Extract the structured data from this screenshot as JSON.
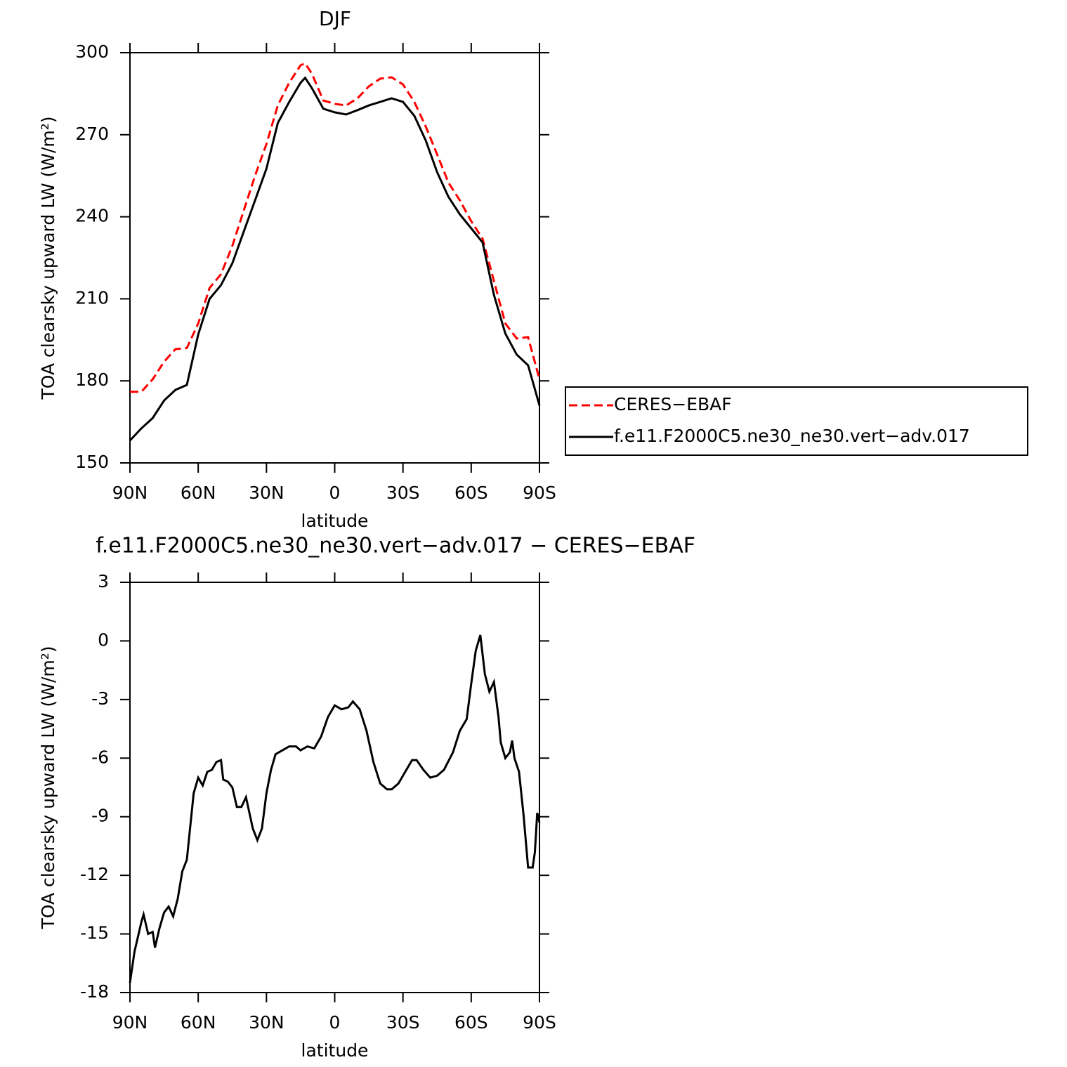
{
  "chart_data": [
    {
      "type": "line",
      "title": "DJF",
      "xlabel": "latitude",
      "ylabel": "TOA clearsky upward LW (W/m²)",
      "x": [
        90,
        85,
        80,
        75,
        70,
        65,
        60,
        55,
        50,
        45,
        40,
        35,
        30,
        25,
        20,
        15,
        13,
        10,
        5,
        0,
        -5,
        -10,
        -15,
        -20,
        -25,
        -30,
        -35,
        -40,
        -45,
        -50,
        -55,
        -60,
        -65,
        -70,
        -75,
        -80,
        -85,
        -90
      ],
      "series": [
        {
          "name": "CERES−EBAF",
          "color": "#ff0000",
          "dash": true,
          "values": [
            176,
            176,
            180.6,
            187,
            191.6,
            192,
            201,
            214,
            219,
            229.4,
            242.2,
            255,
            266.6,
            280.7,
            289,
            295.4,
            296.1,
            292.3,
            282.5,
            281.3,
            280.7,
            283.3,
            287.7,
            290.5,
            291,
            288.4,
            282,
            273,
            262.8,
            252.5,
            246,
            238.4,
            232,
            216.5,
            201,
            195.5,
            196,
            180.6
          ]
        },
        {
          "name": "f.e11.F2000C5.ne30_ne30.vert−adv.017",
          "color": "#000000",
          "dash": false,
          "values": [
            158.2,
            162.6,
            166.4,
            172.8,
            176.7,
            178.5,
            197,
            210,
            215,
            223,
            234.5,
            246,
            257.6,
            274.3,
            282,
            289,
            290.8,
            287,
            279.5,
            278.2,
            277.4,
            279,
            280.7,
            282,
            283.3,
            282,
            276.9,
            267.9,
            256.3,
            247.3,
            240.9,
            235.8,
            230.6,
            211.4,
            197.3,
            189.6,
            185.7,
            171
          ]
        }
      ],
      "xlim": [
        90,
        -90
      ],
      "xticks": [
        {
          "value": 90,
          "label": "90N"
        },
        {
          "value": 60,
          "label": "60N"
        },
        {
          "value": 30,
          "label": "30N"
        },
        0,
        {
          "value": -30,
          "label": "30S"
        },
        {
          "value": -60,
          "label": "60S"
        },
        {
          "value": -90,
          "label": "90S"
        }
      ],
      "ylim": [
        150,
        300
      ],
      "yticks": [
        150,
        180,
        210,
        240,
        270,
        300
      ],
      "legend": "right"
    },
    {
      "type": "line",
      "title": "f.e11.F2000C5.ne30_ne30.vert−adv.017 − CERES−EBAF",
      "xlabel": "latitude",
      "ylabel": "TOA clearsky upward LW (W/m²)",
      "x": [
        90,
        88,
        85,
        84,
        82,
        80,
        79,
        77,
        75,
        73,
        71,
        69,
        67,
        65,
        62,
        60,
        58,
        56,
        54,
        52,
        50,
        49,
        47,
        45,
        43,
        41,
        39,
        36,
        34,
        32,
        30,
        28,
        26,
        23,
        20,
        17,
        15,
        12,
        9,
        6,
        3,
        0,
        -3,
        -6,
        -8,
        -11,
        -14,
        -17,
        -20,
        -23,
        -25,
        -28,
        -31,
        -34,
        -36,
        -39,
        -42,
        -45,
        -48,
        -52,
        -55,
        -58,
        -60,
        -62,
        -64,
        -66,
        -68,
        -70,
        -72,
        -73,
        -75,
        -77,
        -78,
        -79,
        -81,
        -83,
        -85,
        -87,
        -88,
        -89,
        -90
      ],
      "color": "#000000",
      "values": [
        -17.5,
        -15.9,
        -14.4,
        -14.0,
        -15.0,
        -14.9,
        -15.7,
        -14.7,
        -13.9,
        -13.6,
        -14.1,
        -13.2,
        -11.8,
        -11.2,
        -7.8,
        -7.0,
        -7.4,
        -6.7,
        -6.6,
        -6.2,
        -6.1,
        -7.1,
        -7.2,
        -7.5,
        -8.5,
        -8.5,
        -8.0,
        -9.6,
        -10.2,
        -9.6,
        -7.8,
        -6.6,
        -5.8,
        -5.6,
        -5.4,
        -5.4,
        -5.6,
        -5.4,
        -5.5,
        -4.9,
        -3.9,
        -3.3,
        -3.5,
        -3.4,
        -3.1,
        -3.5,
        -4.6,
        -6.2,
        -7.3,
        -7.6,
        -7.6,
        -7.3,
        -6.7,
        -6.1,
        -6.1,
        -6.6,
        -7.0,
        -6.9,
        -6.6,
        -5.7,
        -4.6,
        -4.0,
        -2.2,
        -0.5,
        0.3,
        -1.7,
        -2.6,
        -2.1,
        -3.9,
        -5.2,
        -6.0,
        -5.7,
        -5.1,
        -6.0,
        -6.7,
        -8.9,
        -11.6,
        -11.6,
        -10.8,
        -8.8,
        -9.3
      ],
      "xlim": [
        90,
        -90
      ],
      "xticks": [
        {
          "value": 90,
          "label": "90N"
        },
        {
          "value": 60,
          "label": "60N"
        },
        {
          "value": 30,
          "label": "30N"
        },
        0,
        {
          "value": -30,
          "label": "30S"
        },
        {
          "value": -60,
          "label": "60S"
        },
        {
          "value": -90,
          "label": "90S"
        }
      ],
      "ylim": [
        -18,
        3
      ],
      "yticks": [
        -18,
        -15,
        -12,
        -9,
        -6,
        -3,
        0,
        3
      ]
    }
  ]
}
